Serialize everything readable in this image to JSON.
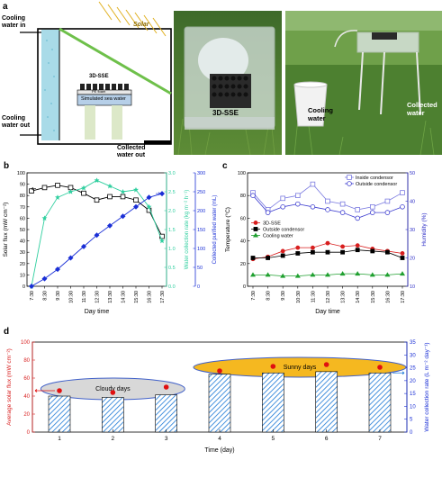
{
  "panel_a": {
    "letter": "a",
    "labels": {
      "cooling_in": "Cooling\nwater in",
      "cooling_out": "Cooling\nwater out",
      "solar": "Solar",
      "sse": "3D-SSE",
      "pe_foam": "PE foam",
      "sea_water": "Simulated sea water",
      "collected": "Collected\nwater out"
    },
    "photo1_label": "3D-SSE",
    "photo2_labels": {
      "cooling": "Cooling\nwater",
      "collected": "Collected\nwater"
    }
  },
  "chart_data": [
    {
      "panel": "b",
      "type": "line",
      "xlabel": "Day time",
      "x": [
        "7:30",
        "8:30",
        "9:30",
        "10:30",
        "11:30",
        "12:30",
        "13:30",
        "14:30",
        "15:30",
        "16:30",
        "17:30"
      ],
      "y_axes": [
        {
          "label": "Solar flux (mW cm⁻²)",
          "lim": [
            0,
            100
          ],
          "ticks": [
            0,
            10,
            20,
            30,
            40,
            50,
            60,
            70,
            80,
            90,
            100
          ],
          "color": "#000000"
        },
        {
          "label": "Water collection rate (kg m⁻² h⁻¹)",
          "lim": [
            0.0,
            3.0
          ],
          "ticks": [
            "0.0",
            "0.5",
            "1.0",
            "1.5",
            "2.0",
            "2.5",
            "3.0"
          ],
          "color": "#2fcf9f"
        },
        {
          "label": "Collected purified water (mL)",
          "lim": [
            0,
            300
          ],
          "ticks": [
            0,
            50,
            100,
            150,
            200,
            250,
            300
          ],
          "color": "#1a2fd6"
        }
      ],
      "series": [
        {
          "axis": 0,
          "color": "#000000",
          "marker": "open-square",
          "values": [
            84,
            87,
            89,
            87,
            82,
            76,
            79,
            79,
            76,
            67,
            44
          ]
        },
        {
          "axis": 1,
          "color": "#2fcf9f",
          "marker": "star",
          "values": [
            0.0,
            1.8,
            2.35,
            2.5,
            2.6,
            2.8,
            2.65,
            2.5,
            2.55,
            2.1,
            1.2
          ]
        },
        {
          "axis": 2,
          "color": "#1a2fd6",
          "marker": "filled-diamond",
          "values": [
            0,
            20,
            45,
            75,
            105,
            135,
            160,
            185,
            210,
            235,
            245
          ]
        }
      ]
    },
    {
      "panel": "c",
      "type": "line",
      "xlabel": "Day time",
      "x": [
        "7:30",
        "8:30",
        "9:30",
        "10:30",
        "11:30",
        "12:30",
        "13:30",
        "14:30",
        "15:30",
        "16:30",
        "17:30"
      ],
      "y_axes": [
        {
          "label": "Temperature (°C)",
          "lim": [
            0,
            100
          ],
          "ticks": [
            0,
            20,
            40,
            60,
            80,
            100
          ],
          "color": "#000000"
        },
        {
          "label": "Humidity (%)",
          "lim": [
            10,
            50
          ],
          "ticks": [
            10,
            20,
            30,
            40,
            50
          ],
          "color": "#3030c8"
        }
      ],
      "series": [
        {
          "name": "Inside condensor",
          "axis": 1,
          "color": "#7b7be0",
          "marker": "open-square",
          "values": [
            43,
            37,
            41,
            42,
            46,
            40,
            39,
            37,
            38,
            40,
            43
          ]
        },
        {
          "name": "Outside condensor",
          "axis": 1,
          "color": "#3f3fd0",
          "marker": "open-circle",
          "values": [
            42,
            36,
            38,
            39,
            38,
            37,
            36,
            34,
            36,
            36,
            38
          ]
        },
        {
          "name": "3D-SSE",
          "axis": 0,
          "color": "#d81e1e",
          "marker": "filled-circle",
          "values": [
            24,
            26,
            31,
            34,
            34,
            38,
            35,
            36,
            33,
            31,
            29
          ]
        },
        {
          "name": "Outside condensor",
          "axis": 0,
          "color": "#000000",
          "marker": "filled-square",
          "values": [
            25,
            25,
            27,
            29,
            30,
            30,
            30,
            32,
            31,
            30,
            25
          ]
        },
        {
          "name": "Cooling water",
          "axis": 0,
          "color": "#20a030",
          "marker": "filled-triangle",
          "values": [
            10,
            10,
            9,
            9,
            10,
            10,
            11,
            11,
            10,
            10,
            11
          ]
        }
      ]
    },
    {
      "panel": "d",
      "type": "bar",
      "xlabel": "Time (day)",
      "categories": [
        "1",
        "2",
        "3",
        "4",
        "5",
        "6",
        "7"
      ],
      "y_axes": [
        {
          "label": "Average solar flux (mW cm⁻²)",
          "lim": [
            0,
            100
          ],
          "ticks": [
            0,
            20,
            40,
            60,
            80,
            100
          ],
          "color": "#d81e1e"
        },
        {
          "label": "Water collection rate (L m⁻² day⁻¹)",
          "lim": [
            0,
            35
          ],
          "ticks": [
            0,
            5,
            10,
            15,
            20,
            25,
            30,
            35
          ],
          "color": "#1a2fd6"
        }
      ],
      "bars": {
        "axis": 1,
        "values": [
          14,
          13.5,
          14.5,
          22.5,
          23,
          23.5,
          23
        ],
        "color": "#1a78d6"
      },
      "points": {
        "axis": 0,
        "values": [
          46,
          44,
          50,
          68,
          73,
          75,
          72
        ],
        "color": "#e01010"
      },
      "annotations": [
        "Cloudy days",
        "Sunny days"
      ]
    }
  ]
}
